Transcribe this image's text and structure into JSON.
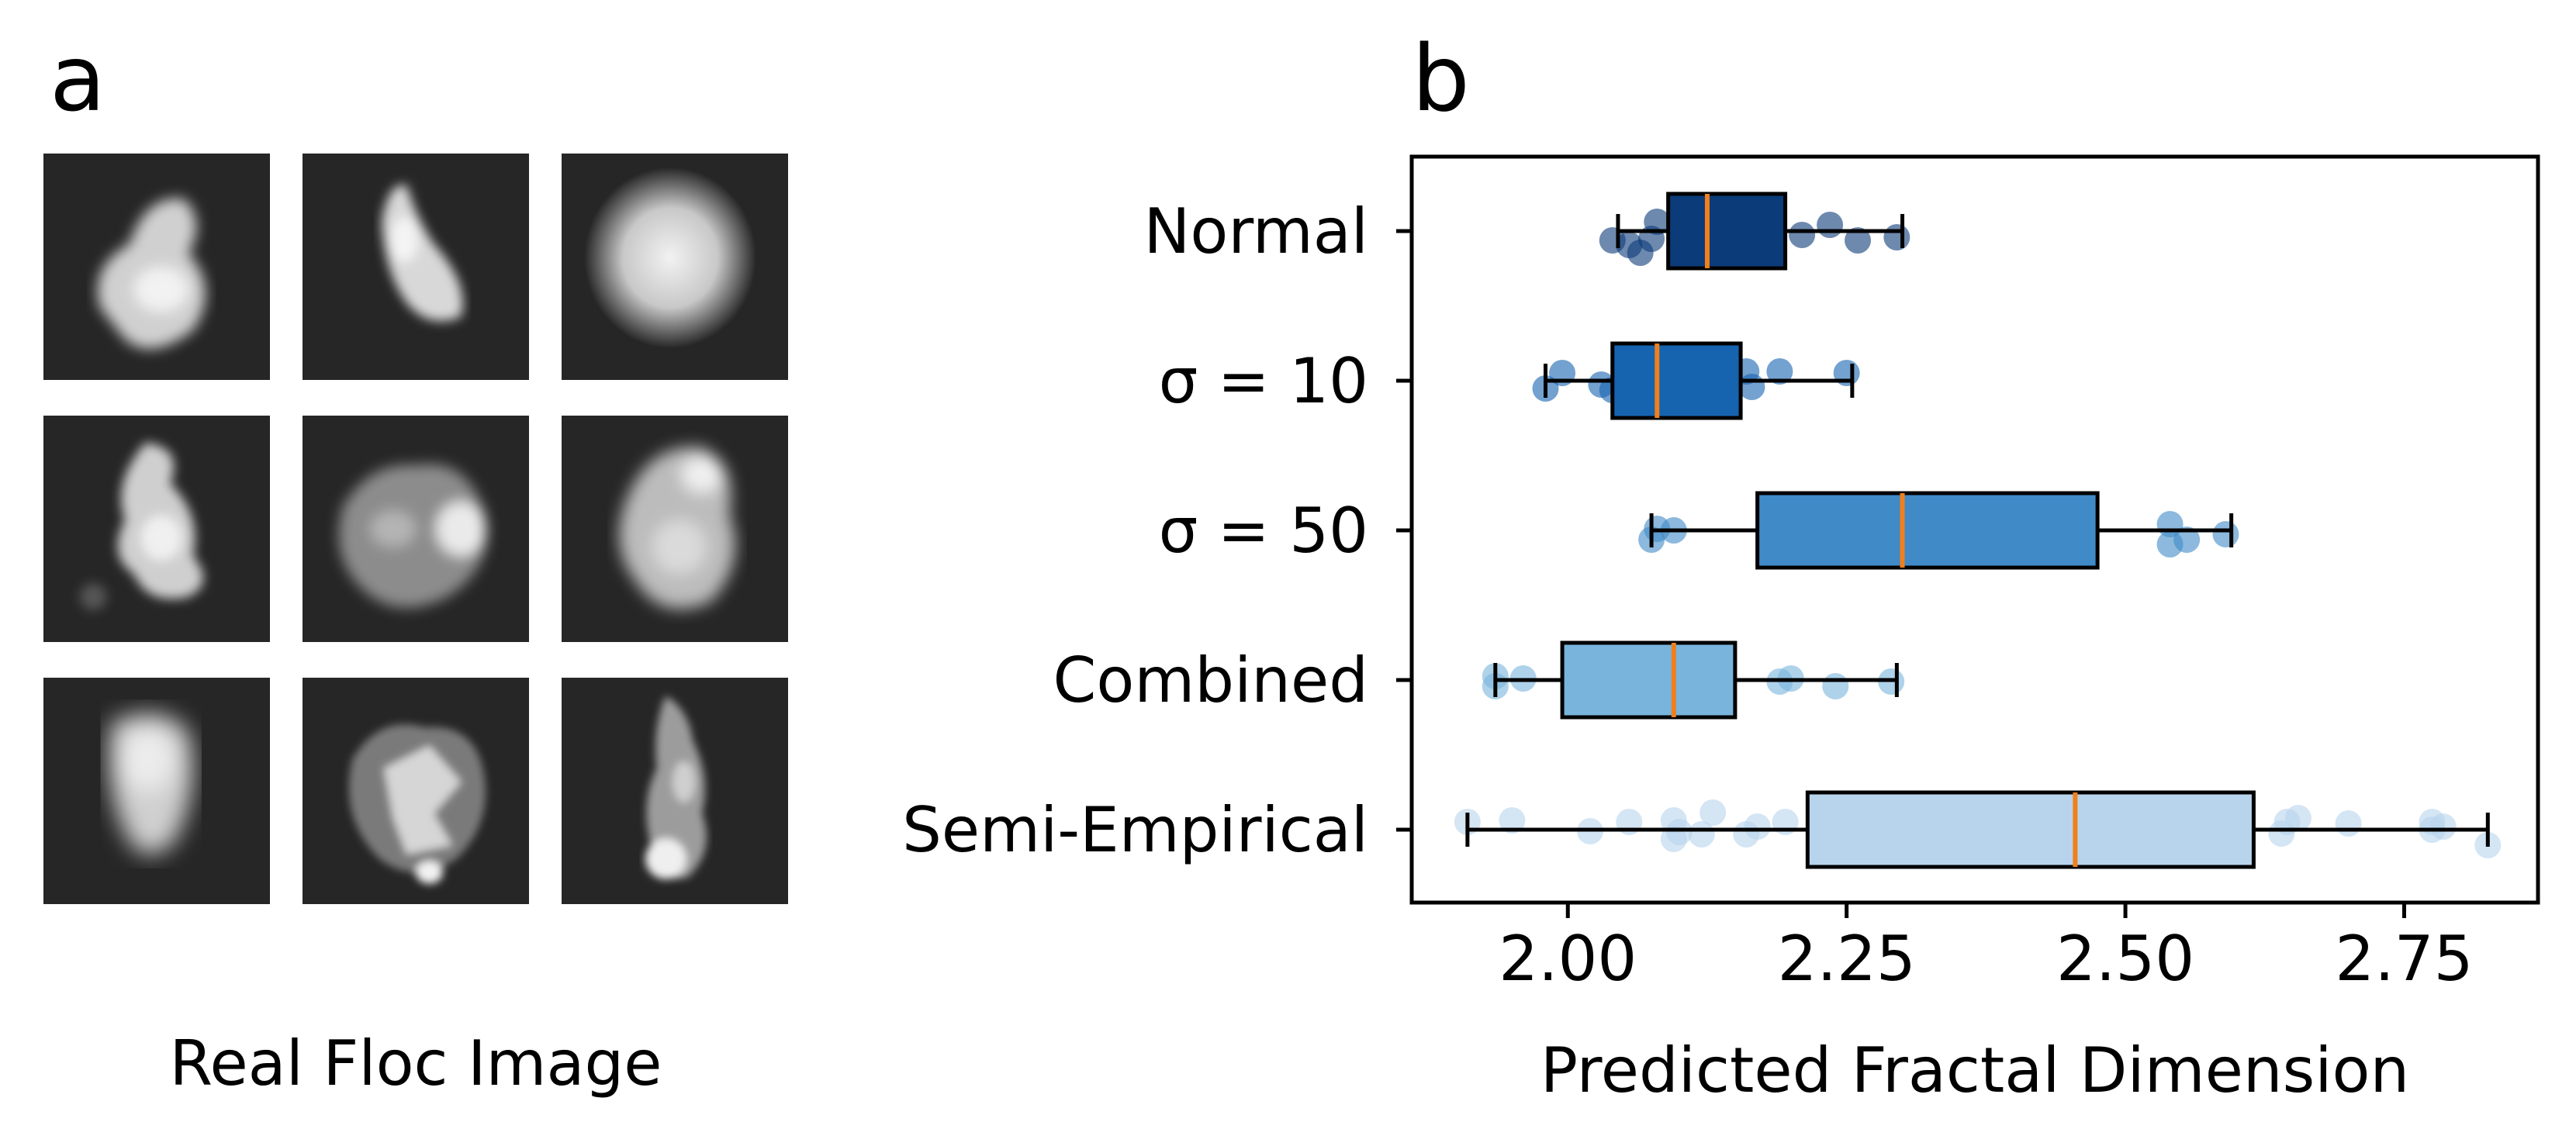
{
  "panels": {
    "a_label": "a",
    "b_label": "b"
  },
  "floc_panel": {
    "caption": "Real Floc Image",
    "image_count": 9
  },
  "chart_data": {
    "type": "box",
    "orientation": "horizontal",
    "xlabel": "Predicted Fractal Dimension",
    "xlim": [
      1.86,
      2.87
    ],
    "xticks": [
      2.0,
      2.25,
      2.5,
      2.75
    ],
    "xtick_labels": [
      "2.00",
      "2.25",
      "2.50",
      "2.75"
    ],
    "grid": false,
    "median_color": "#f07f1c",
    "categories": [
      "Normal",
      "σ = 10",
      "σ = 50",
      "Combined",
      "Semi-Empirical"
    ],
    "series": [
      {
        "label": "Normal",
        "color": "#0b3b78",
        "whisker_low": 2.045,
        "q1": 2.09,
        "median": 2.125,
        "q3": 2.195,
        "whisker_high": 2.3,
        "points": [
          [
            2.04,
            0.12
          ],
          [
            2.055,
            0.18
          ],
          [
            2.065,
            0.28
          ],
          [
            2.075,
            0.1
          ],
          [
            2.08,
            -0.12
          ],
          [
            2.11,
            0.05
          ],
          [
            2.16,
            -0.05
          ],
          [
            2.18,
            0.1
          ],
          [
            2.21,
            0.05
          ],
          [
            2.235,
            -0.08
          ],
          [
            2.26,
            0.12
          ],
          [
            2.295,
            0.08
          ]
        ]
      },
      {
        "label": "σ = 10",
        "color": "#1663b0",
        "whisker_low": 1.98,
        "q1": 2.04,
        "median": 2.08,
        "q3": 2.155,
        "whisker_high": 2.255,
        "points": [
          [
            1.98,
            0.1
          ],
          [
            1.995,
            -0.1
          ],
          [
            2.03,
            0.05
          ],
          [
            2.04,
            0.12
          ],
          [
            2.07,
            -0.08
          ],
          [
            2.1,
            0.18
          ],
          [
            2.14,
            0.12
          ],
          [
            2.16,
            -0.12
          ],
          [
            2.165,
            0.08
          ],
          [
            2.19,
            -0.12
          ],
          [
            2.25,
            -0.1
          ]
        ]
      },
      {
        "label": "σ = 50",
        "color": "#3f8ac7",
        "whisker_low": 2.075,
        "q1": 2.17,
        "median": 2.3,
        "q3": 2.475,
        "whisker_high": 2.595,
        "points": [
          [
            2.075,
            0.12
          ],
          [
            2.08,
            -0.02
          ],
          [
            2.095,
            0.0
          ],
          [
            2.54,
            0.18
          ],
          [
            2.555,
            0.12
          ],
          [
            2.54,
            -0.08
          ],
          [
            2.59,
            0.05
          ]
        ]
      },
      {
        "label": "Combined",
        "color": "#78b4dc",
        "whisker_low": 1.935,
        "q1": 1.995,
        "median": 2.095,
        "q3": 2.15,
        "whisker_high": 2.295,
        "points": [
          [
            1.935,
            0.08
          ],
          [
            1.935,
            -0.05
          ],
          [
            1.96,
            -0.02
          ],
          [
            2.03,
            0.12
          ],
          [
            2.19,
            0.02
          ],
          [
            2.2,
            -0.02
          ],
          [
            2.24,
            0.08
          ],
          [
            2.29,
            0.02
          ]
        ]
      },
      {
        "label": "Semi-Empirical",
        "color": "#b7d4ec",
        "whisker_low": 1.91,
        "q1": 2.215,
        "median": 2.455,
        "q3": 2.615,
        "whisker_high": 2.825,
        "points": [
          [
            1.91,
            -0.1
          ],
          [
            1.95,
            -0.12
          ],
          [
            2.02,
            0.02
          ],
          [
            2.055,
            -0.1
          ],
          [
            2.095,
            0.12
          ],
          [
            2.095,
            -0.12
          ],
          [
            2.1,
            0.03
          ],
          [
            2.12,
            0.06
          ],
          [
            2.13,
            -0.22
          ],
          [
            2.16,
            0.06
          ],
          [
            2.17,
            -0.04
          ],
          [
            2.195,
            -0.1
          ],
          [
            2.64,
            0.05
          ],
          [
            2.645,
            -0.1
          ],
          [
            2.655,
            -0.15
          ],
          [
            2.7,
            -0.08
          ],
          [
            2.775,
            0.0
          ],
          [
            2.775,
            -0.1
          ],
          [
            2.785,
            -0.04
          ],
          [
            2.825,
            0.2
          ]
        ]
      }
    ]
  }
}
